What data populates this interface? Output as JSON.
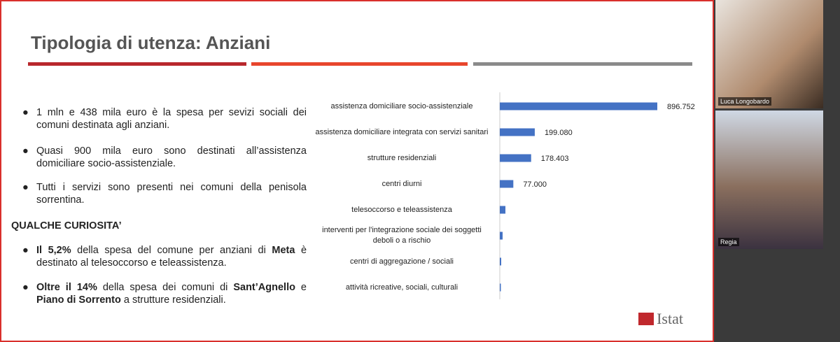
{
  "slide": {
    "title": "Tipologia di utenza: Anziani",
    "bullets": [
      "1 mln e 438 mila euro è la spesa per sevizi sociali dei comuni destinata agli anziani.",
      "Quasi 900 mila euro sono destinati all’assistenza domiciliare socio-assistenziale.",
      "Tutti i servizi sono presenti nei comuni della penisola sorrentina."
    ],
    "curiosity_heading": "QUALCHE CURIOSITA’",
    "curiosities": [
      [
        {
          "text": "Il 5,2%",
          "bold": true
        },
        {
          "text": " della spesa del comune per anziani di ",
          "bold": false
        },
        {
          "text": "Meta",
          "bold": true
        },
        {
          "text": " è destinato al telesoccorso e teleassistenza.",
          "bold": false
        }
      ],
      [
        {
          "text": "Oltre il 14%",
          "bold": true
        },
        {
          "text": " della spesa dei comuni di ",
          "bold": false
        },
        {
          "text": "Sant’Agnello",
          "bold": true
        },
        {
          "text": " e ",
          "bold": false
        },
        {
          "text": "Piano di Sorrento",
          "bold": true
        },
        {
          "text": " a strutture residenziali.",
          "bold": false
        }
      ]
    ],
    "logo": "Istat"
  },
  "chart_data": {
    "type": "bar",
    "orientation": "horizontal",
    "color": "#4472c4",
    "categories": [
      "assistenza domiciliare socio-assistenziale",
      "assistenza domiciliare integrata con servizi sanitari",
      "strutture residenziali",
      "centri diurni",
      "telesoccorso e teleassistenza",
      "interventi per l'integrazione sociale dei soggetti deboli o a rischio",
      "centri di aggregazione / sociali",
      "attività ricreative, sociali, culturali"
    ],
    "values": [
      896752,
      199080,
      178403,
      77000,
      32000,
      16000,
      8000,
      6000
    ],
    "value_labels": [
      "896.752",
      "199.080",
      "178.403",
      "77.000",
      null,
      null,
      null,
      null
    ]
  },
  "participants": [
    "Luca Longobardo",
    "Regia"
  ]
}
